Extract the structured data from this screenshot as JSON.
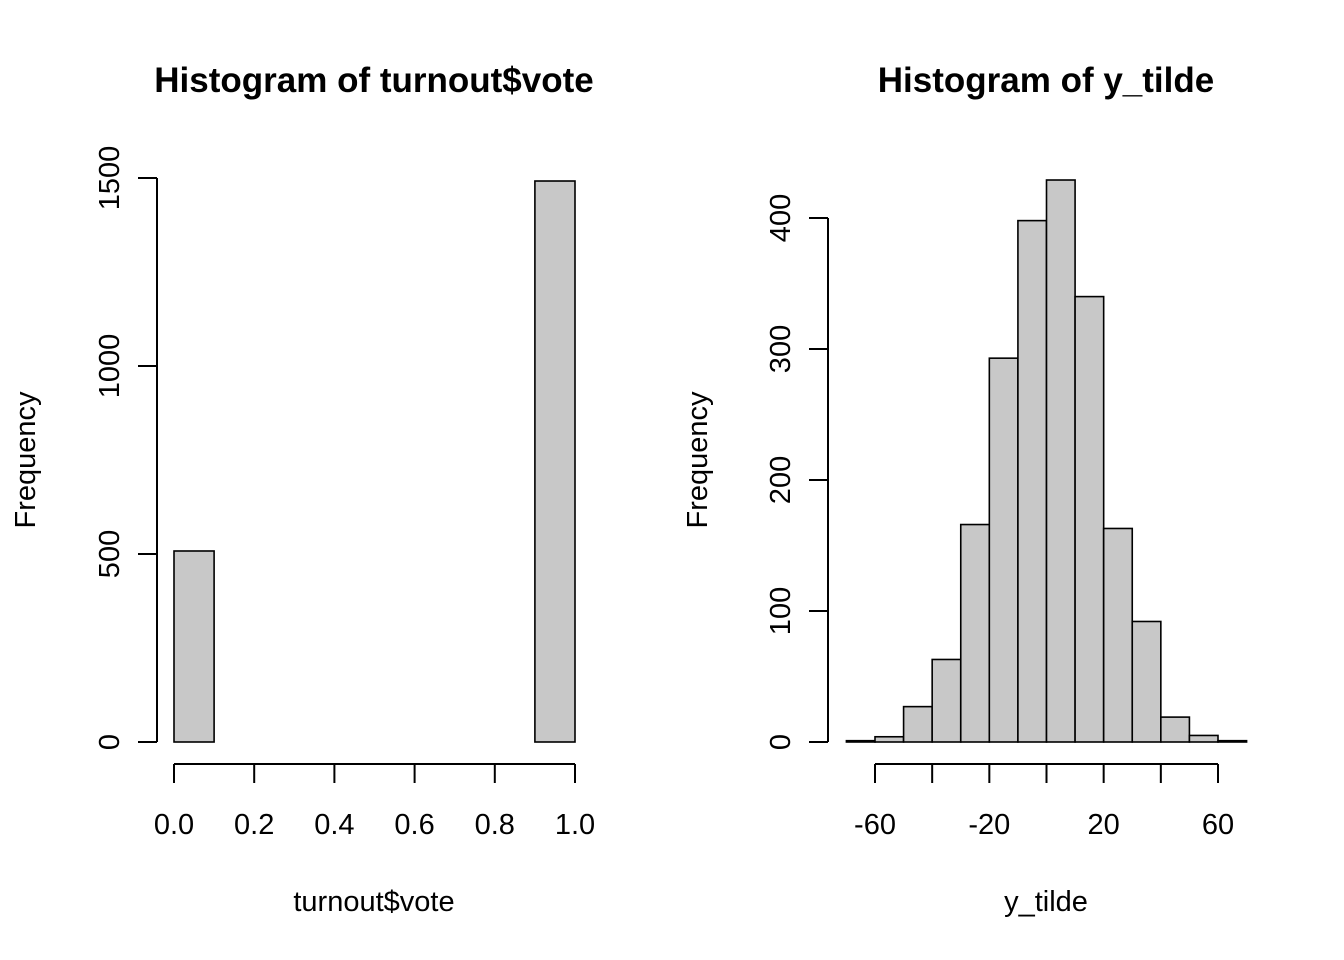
{
  "chart_data": [
    {
      "type": "bar",
      "title": "Histogram of turnout$vote",
      "xlabel": "turnout$vote",
      "ylabel": "Frequency",
      "bin_edges": [
        0.0,
        0.1,
        0.2,
        0.3,
        0.4,
        0.5,
        0.6,
        0.7,
        0.8,
        0.9,
        1.0
      ],
      "values": [
        508,
        0,
        0,
        0,
        0,
        0,
        0,
        0,
        0,
        1492
      ],
      "x_ticks": [
        0.0,
        0.2,
        0.4,
        0.6,
        0.8,
        1.0
      ],
      "x_tick_labels": [
        "0.0",
        "0.2",
        "0.4",
        "0.6",
        "0.8",
        "1.0"
      ],
      "y_ticks": [
        0,
        500,
        1000,
        1500
      ],
      "y_tick_labels": [
        "0",
        "500",
        "1000",
        "1500"
      ],
      "xlim": [
        0.0,
        1.0
      ],
      "ylim": [
        0,
        1500
      ],
      "grid": false
    },
    {
      "type": "bar",
      "title": "Histogram of y_tilde",
      "xlabel": "y_tilde",
      "ylabel": "Frequency",
      "bin_edges": [
        -70,
        -60,
        -50,
        -40,
        -30,
        -20,
        -10,
        0,
        10,
        20,
        30,
        40,
        50,
        60,
        70
      ],
      "values": [
        1,
        4,
        27,
        63,
        166,
        293,
        398,
        429,
        340,
        163,
        92,
        19,
        5,
        1
      ],
      "x_ticks": [
        -60,
        -40,
        -20,
        0,
        20,
        40,
        60
      ],
      "x_tick_labels": [
        "-60",
        "",
        "-20",
        "",
        "20",
        "",
        "60"
      ],
      "y_ticks": [
        0,
        100,
        200,
        300,
        400
      ],
      "y_tick_labels": [
        "0",
        "100",
        "200",
        "300",
        "400"
      ],
      "xlim": [
        -60,
        60
      ],
      "ylim": [
        0,
        400
      ],
      "grid": false
    }
  ]
}
